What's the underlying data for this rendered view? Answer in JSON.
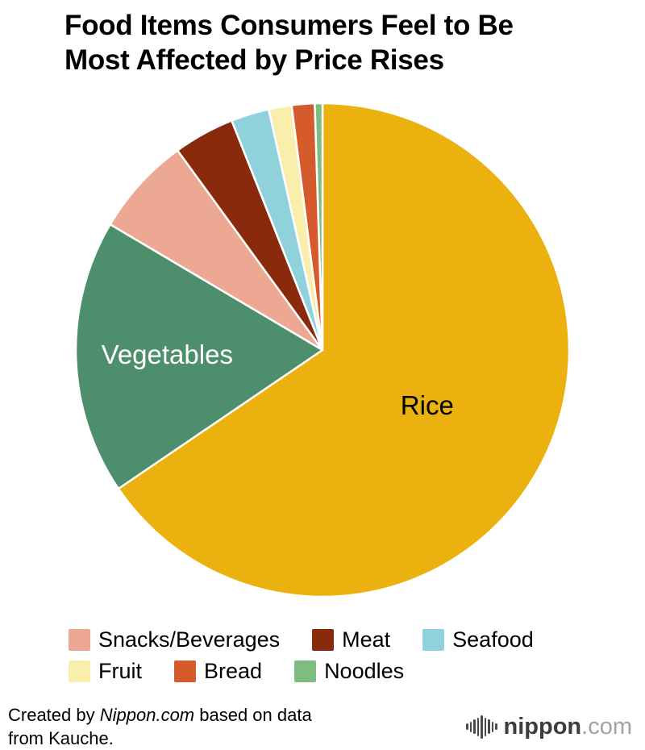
{
  "title": {
    "lines": [
      "Food Items Consumers Feel to Be",
      "Most Affected by Price Rises"
    ]
  },
  "chart_data": {
    "type": "pie",
    "title": "Food Items Consumers Feel to Be Most Affected by Price Rises",
    "start_angle_deg": 0,
    "direction": "clockwise",
    "unit": "percent (estimated from slice angles; no numeric labels shown)",
    "slices": [
      {
        "label": "Rice",
        "value": 65.5,
        "color": "#EBB10E",
        "label_shown": true,
        "label_color": "#000000",
        "label_radius": 0.48
      },
      {
        "label": "Vegetables",
        "value": 18.0,
        "color": "#4D8F6C",
        "label_shown": true,
        "label_color": "#FFFFFF",
        "label_radius": 0.63
      },
      {
        "label": "Snacks/Beverages",
        "value": 6.5,
        "color": "#ECA893",
        "label_shown": false
      },
      {
        "label": "Meat",
        "value": 4.0,
        "color": "#8A2A0D",
        "label_shown": false
      },
      {
        "label": "Seafood",
        "value": 2.5,
        "color": "#90D2DB",
        "label_shown": false
      },
      {
        "label": "Fruit",
        "value": 1.5,
        "color": "#FAEEAC",
        "label_shown": false
      },
      {
        "label": "Bread",
        "value": 1.5,
        "color": "#D55B2D",
        "label_shown": false
      },
      {
        "label": "Noodles",
        "value": 0.5,
        "color": "#7DBE80",
        "label_shown": false
      }
    ],
    "legend": {
      "position": "bottom",
      "rows": [
        [
          "Snacks/Beverages",
          "Meat",
          "Seafood"
        ],
        [
          "Fruit",
          "Bread",
          "Noodles"
        ]
      ]
    }
  },
  "footer": {
    "credit_prefix": "Created by ",
    "credit_source": "Nippon.com",
    "credit_suffix": " based on data",
    "credit_line2": "from Kauche.",
    "logo_text_main": "nippon",
    "logo_text_suffix": ".com"
  }
}
